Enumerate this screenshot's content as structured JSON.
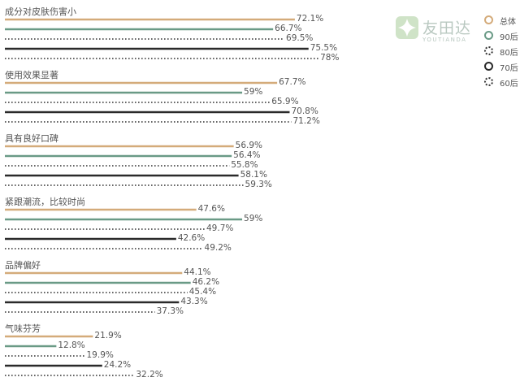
{
  "chart_data": {
    "type": "bar",
    "orientation": "horizontal",
    "categories": [
      "成分对皮肤伤害小",
      "使用效果显著",
      "具有良好口碑",
      "紧跟潮流，比较时尚",
      "品牌偏好",
      "气味芬芳"
    ],
    "series": [
      {
        "name": "总体",
        "values": [
          72.1,
          67.7,
          56.9,
          47.6,
          44.1,
          21.9
        ],
        "color": "#d4ab7a",
        "style": "solid"
      },
      {
        "name": "90后",
        "values": [
          66.7,
          59,
          56.4,
          59,
          46.2,
          12.8
        ],
        "color": "#6a9a86",
        "style": "solid"
      },
      {
        "name": "80后",
        "values": [
          69.5,
          65.9,
          55.8,
          49.7,
          45.4,
          19.9
        ],
        "color": "#333333",
        "style": "dotted"
      },
      {
        "name": "70后",
        "values": [
          75.5,
          70.8,
          58.1,
          42.6,
          43.3,
          24.2
        ],
        "color": "#2a2a2a",
        "style": "solid"
      },
      {
        "name": "60后",
        "values": [
          78,
          71.2,
          59.3,
          49.2,
          37.3,
          32.2
        ],
        "color": "#333333",
        "style": "dotted"
      }
    ],
    "value_labels": [
      [
        "72.1%",
        "66.7%",
        "69.5%",
        "75.5%",
        "78%"
      ],
      [
        "67.7%",
        "59%",
        "65.9%",
        "70.8%",
        "71.2%"
      ],
      [
        "56.9%",
        "56.4%",
        "55.8%",
        "58.1%",
        "59.3%"
      ],
      [
        "47.6%",
        "59%",
        "49.7%",
        "42.6%",
        "49.2%"
      ],
      [
        "44.1%",
        "46.2%",
        "45.4%",
        "43.3%",
        "37.3%"
      ],
      [
        "21.9%",
        "12.8%",
        "19.9%",
        "24.2%",
        "32.2%"
      ]
    ],
    "legend": {
      "position": "top-right"
    },
    "xlim": [
      0,
      100
    ],
    "grid": false
  },
  "logo": {
    "name": "友田达",
    "sub": "YOUTIANDA"
  }
}
